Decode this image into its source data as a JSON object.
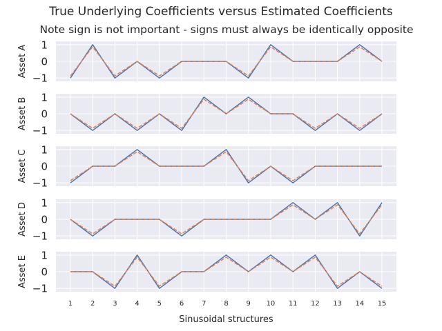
{
  "title": "True Underlying Coefficients versus Estimated Coefficients",
  "subtitle": "Note sign is not important - signs must always be identically opposite",
  "colors": {
    "background": "#eaeaf2",
    "grid": "#ffffff",
    "true_line": "#4c72b0",
    "estimate_line": "#dd8452",
    "text": "#262626"
  },
  "chart_data": {
    "type": "line",
    "xlabel": "Sinusoidal structures",
    "x": [
      1,
      2,
      3,
      4,
      5,
      6,
      7,
      8,
      9,
      10,
      11,
      12,
      13,
      14,
      15
    ],
    "xtick_labels": [
      "1",
      "2",
      "3",
      "4",
      "5",
      "6",
      "7",
      "8",
      "9",
      "10",
      "11",
      "12",
      "13",
      "14",
      "15"
    ],
    "ylim": [
      -1,
      1
    ],
    "ytick_labels": [
      "−1",
      "0",
      "1"
    ],
    "grid": true,
    "legend": "none",
    "panels": [
      {
        "ylabel": "Asset A",
        "series": [
          {
            "style": "solid",
            "values": [
              -1,
              1,
              -1,
              0,
              -1,
              0,
              0,
              0,
              -1,
              1,
              0,
              0,
              0,
              1,
              0
            ]
          },
          {
            "style": "dashed",
            "values": [
              -0.87,
              0.87,
              -0.87,
              0,
              -0.87,
              0,
              0,
              0,
              -0.87,
              0.87,
              0,
              0,
              0,
              0.87,
              0
            ]
          }
        ]
      },
      {
        "ylabel": "Asset B",
        "series": [
          {
            "style": "solid",
            "values": [
              0,
              -1,
              0,
              -1,
              0,
              -1,
              1,
              0,
              1,
              0,
              0,
              -1,
              0,
              -1,
              0
            ]
          },
          {
            "style": "dashed",
            "values": [
              0,
              -0.87,
              0,
              -0.87,
              0,
              -0.87,
              0.87,
              0,
              0.87,
              0,
              0,
              -0.87,
              0,
              -0.87,
              0
            ]
          }
        ]
      },
      {
        "ylabel": "Asset C",
        "series": [
          {
            "style": "solid",
            "values": [
              -1,
              0,
              0,
              1,
              0,
              0,
              0,
              1,
              -1,
              0,
              -1,
              0,
              0,
              0,
              0
            ]
          },
          {
            "style": "dashed",
            "values": [
              -0.87,
              0,
              0,
              0.87,
              0,
              0,
              0,
              0.87,
              -0.87,
              0,
              -0.87,
              0,
              0,
              0,
              0
            ]
          }
        ]
      },
      {
        "ylabel": "Asset D",
        "series": [
          {
            "style": "solid",
            "values": [
              0,
              -1,
              0,
              0,
              0,
              -1,
              0,
              0,
              0,
              0,
              1,
              0,
              1,
              -1,
              1
            ]
          },
          {
            "style": "dashed",
            "values": [
              0,
              -0.87,
              0,
              0,
              0,
              -0.87,
              0,
              0,
              0,
              0,
              0.87,
              0,
              0.87,
              -0.87,
              0.87
            ]
          }
        ]
      },
      {
        "ylabel": "Asset E",
        "series": [
          {
            "style": "solid",
            "values": [
              0,
              0,
              -1,
              1,
              -1,
              0,
              0,
              1,
              0,
              1,
              0,
              1,
              -1,
              0,
              -1
            ]
          },
          {
            "style": "dashed",
            "values": [
              0,
              0,
              -0.87,
              0.87,
              -0.87,
              0,
              0,
              0.87,
              0,
              0.87,
              0,
              0.87,
              -0.87,
              0,
              -0.87
            ]
          }
        ]
      }
    ]
  }
}
